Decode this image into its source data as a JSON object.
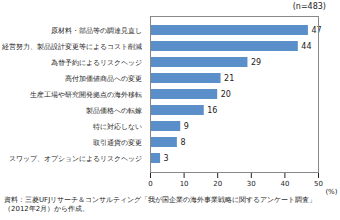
{
  "chart_data": {
    "type": "bar",
    "orientation": "horizontal",
    "categories": [
      "原材料・部品等の調達見直し",
      "経営努力、製品設計変更等によるコスト削減",
      "為替予約によるリスクヘッジ",
      "高付加価値商品への変更",
      "生産工場や研究開発拠点の海外移転",
      "製品価格への転嫁",
      "特に対応しない",
      "取引通貨の変更",
      "スワップ、オプションによるリスクヘッジ"
    ],
    "values": [
      47,
      44,
      29,
      21,
      20,
      16,
      9,
      8,
      3
    ],
    "color": "#5b8fc9",
    "x_label": "(%)",
    "xlim": [
      0,
      50
    ],
    "xticks": [
      0,
      10,
      20,
      30,
      40,
      50
    ],
    "annotations": [
      "(n=483)"
    ],
    "caption": "資料：三菱UFJリサーチ＆コンサルティング「我が国企業の海外事業戦略に関するアンケート調査」（2012年2月）から作成。",
    "data_labels": true,
    "grid": false
  }
}
